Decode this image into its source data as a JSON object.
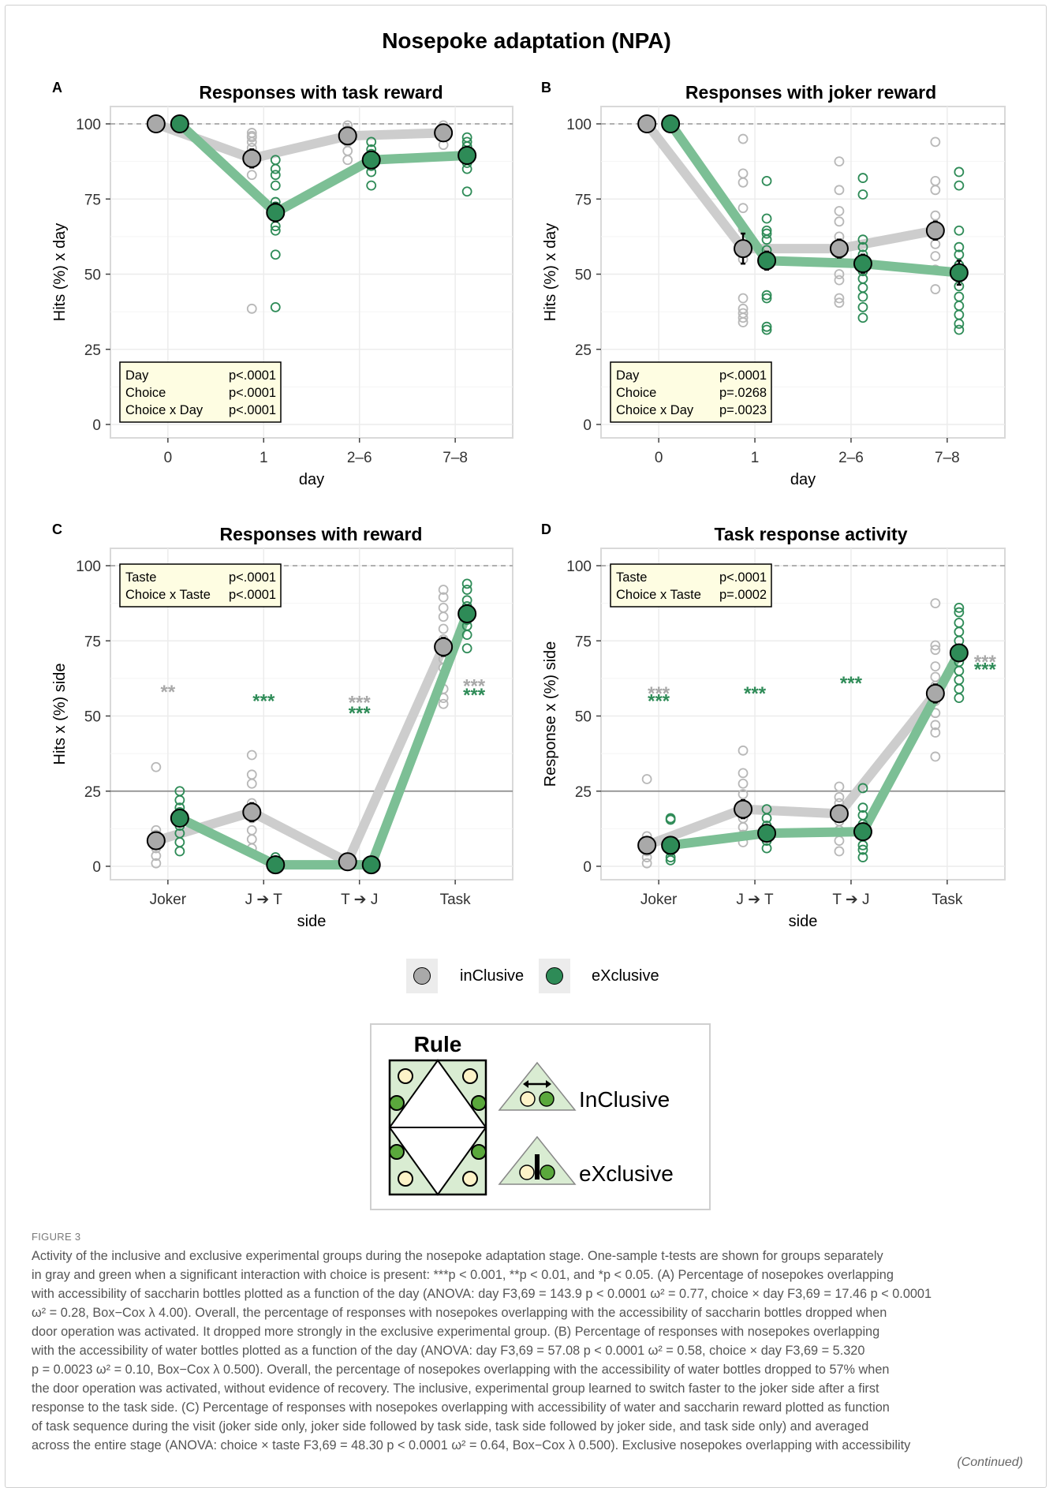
{
  "figure_title": "Nosepoke adaptation (NPA)",
  "legend": {
    "items": [
      {
        "label": "inClusive",
        "color": "#a9a9a9"
      },
      {
        "label": "eXclusive",
        "color": "#2e8b57"
      }
    ]
  },
  "rule_box": {
    "title": "Rule",
    "inclusive_label": "InClusive",
    "exclusive_label": "eXclusive"
  },
  "caption": {
    "label": "FIGURE 3",
    "lines": [
      "Activity of the inclusive and exclusive experimental groups during the nosepoke adaptation stage. One-sample t-tests are shown for groups separately",
      "in gray and green when a significant interaction with choice is present: ***p < 0.001, **p < 0.01, and *p < 0.05. (A) Percentage of nosepokes overlapping",
      "with accessibility of saccharin bottles plotted as a function of the day (ANOVA: day F3,69 = 143.9 p < 0.0001 ω² = 0.77, choice × day F3,69 = 17.46 p < 0.0001",
      "ω² = 0.28, Box−Cox λ 4.00). Overall, the percentage of responses with nosepokes overlapping with the accessibility of saccharin bottles dropped when",
      "door operation was activated. It dropped more strongly in the exclusive experimental group. (B) Percentage of responses with nosepokes overlapping",
      "with the accessibility of water bottles plotted as a function of the day (ANOVA: day F3,69 = 57.08 p < 0.0001 ω² = 0.58, choice × day F3,69 = 5.320",
      "p = 0.0023 ω² = 0.10, Box−Cox λ 0.500). Overall, the percentage of nosepokes overlapping with the accessibility of water bottles dropped to 57% when",
      "the door operation was activated, without evidence of recovery. The inclusive, experimental group learned to switch faster to the joker side after a first",
      "response to the task side. (C) Percentage of responses with nosepokes overlapping with accessibility of water and saccharin reward plotted as function",
      "of task sequence during the visit (joker side only, joker side followed by task side, task side followed by joker side, and task side only) and averaged",
      "across the entire stage (ANOVA: choice × taste F3,69 = 48.30 p < 0.0001 ω² = 0.64, Box−Cox λ 0.500). Exclusive nosepokes overlapping with accessibility"
    ],
    "continued": "(Continued)"
  },
  "chart_data": [
    {
      "id": "A",
      "type": "scatter",
      "panel_label": "A",
      "title": "Responses with task reward",
      "xlabel": "day",
      "ylabel": "Hits (%) x day",
      "categories": [
        "0",
        "1",
        "2–6",
        "7–8"
      ],
      "ylim": [
        0,
        100
      ],
      "yticks": [
        0,
        25,
        50,
        75,
        100
      ],
      "ref_line": {
        "y": 100,
        "style": "dashed"
      },
      "stats_box": {
        "position": "bottom-left",
        "rows": [
          [
            "Day",
            "p<.0001"
          ],
          [
            "Choice",
            "p<.0001"
          ],
          [
            "Choice x Day",
            "p<.0001"
          ]
        ]
      },
      "series": [
        {
          "name": "inClusive",
          "color": "#bdbdbd",
          "means": [
            100,
            88.5,
            96,
            97
          ],
          "errors": [
            0,
            3,
            1,
            1
          ],
          "points": [
            [
              100
            ],
            [
              38.5,
              83,
              87,
              90,
              92,
              94,
              95.5,
              96,
              97
            ],
            [
              88,
              91,
              94,
              96,
              98,
              99.5
            ],
            [
              93,
              96,
              98,
              99.5
            ]
          ]
        },
        {
          "name": "eXclusive",
          "color": "#2e8b57",
          "means": [
            100,
            70.5,
            88,
            89.5
          ],
          "errors": [
            0,
            3,
            2,
            2
          ],
          "points": [
            [
              100
            ],
            [
              39,
              56.5,
              64.5,
              66,
              69,
              72.5,
              74,
              79.5,
              83,
              85,
              88
            ],
            [
              79.5,
              84,
              86,
              88,
              90,
              91.5,
              94
            ],
            [
              77.5,
              85,
              87,
              89,
              91,
              92.5,
              94,
              95.5
            ]
          ]
        }
      ],
      "annotations": []
    },
    {
      "id": "B",
      "type": "scatter",
      "panel_label": "B",
      "title": "Responses with joker reward",
      "xlabel": "day",
      "ylabel": "Hits (%) x day",
      "categories": [
        "0",
        "1",
        "2–6",
        "7–8"
      ],
      "ylim": [
        0,
        100
      ],
      "yticks": [
        0,
        25,
        50,
        75,
        100
      ],
      "ref_line": {
        "y": 100,
        "style": "dashed"
      },
      "stats_box": {
        "position": "bottom-left",
        "rows": [
          [
            "Day",
            "p<.0001"
          ],
          [
            "Choice",
            "p=.0268"
          ],
          [
            "Choice x Day",
            "p=.0023"
          ]
        ]
      },
      "series": [
        {
          "name": "inClusive",
          "color": "#bdbdbd",
          "means": [
            100,
            58.5,
            58.5,
            64.5
          ],
          "errors": [
            0,
            5,
            3,
            3
          ],
          "points": [
            [
              100
            ],
            [
              34,
              35.5,
              37,
              38.5,
              42,
              55,
              65,
              72,
              80.5,
              83.5,
              95
            ],
            [
              40.5,
              42,
              48,
              50,
              54.5,
              57,
              62.5,
              67.5,
              71,
              78,
              87.5
            ],
            [
              45,
              51.5,
              56,
              60,
              66,
              69.5,
              78,
              81,
              94
            ]
          ]
        },
        {
          "name": "eXclusive",
          "color": "#2e8b57",
          "means": [
            100,
            54.5,
            53.5,
            50.5
          ],
          "errors": [
            0,
            3,
            3,
            4
          ],
          "points": [
            [
              100
            ],
            [
              31.5,
              32.5,
              42,
              43,
              56,
              58,
              61.5,
              63.5,
              64.5,
              68.5,
              81
            ],
            [
              35.5,
              39,
              42.5,
              45.5,
              48.5,
              51,
              53.5,
              56.5,
              59,
              61.5,
              76.5,
              82
            ],
            [
              31.5,
              33.5,
              36.5,
              39.5,
              42.5,
              46,
              50,
              53,
              56.5,
              59,
              64.5,
              79.5,
              84
            ]
          ]
        }
      ],
      "annotations": []
    },
    {
      "id": "C",
      "type": "scatter",
      "panel_label": "C",
      "title": "Responses with reward",
      "xlabel": "side",
      "ylabel": "Hits x (%) side",
      "categories": [
        "Joker",
        "J ➔ T",
        "T ➔ J",
        "Task"
      ],
      "ylim": [
        0,
        100
      ],
      "yticks": [
        0,
        25,
        50,
        75,
        100
      ],
      "ref_line": {
        "y": 100,
        "style": "dashed"
      },
      "solid_line": {
        "y": 25
      },
      "stats_box": {
        "position": "top-left",
        "rows": [
          [
            "Taste",
            "p<.0001"
          ],
          [
            "Choice x Taste",
            "p<.0001"
          ]
        ]
      },
      "series": [
        {
          "name": "inClusive",
          "color": "#bdbdbd",
          "means": [
            8.5,
            18,
            1.5,
            73
          ],
          "errors": [
            1.5,
            3,
            0.5,
            3
          ],
          "points": [
            [
              1,
              3.5,
              6,
              8.5,
              10.5,
              12,
              33
            ],
            [
              6,
              9,
              12,
              16,
              21,
              27.5,
              30.5,
              37
            ],
            [
              0.5,
              1,
              1.5,
              2
            ],
            [
              54,
              56,
              59,
              66,
              69,
              72,
              75.5,
              79,
              83,
              86,
              89.5,
              92
            ]
          ]
        },
        {
          "name": "eXclusive",
          "color": "#2e8b57",
          "means": [
            16,
            0.5,
            0.5,
            84
          ],
          "errors": [
            2,
            0.5,
            0.3,
            2.5
          ],
          "points": [
            [
              5,
              8,
              11,
              13.5,
              16,
              18,
              19.5,
              22,
              25
            ],
            [
              0,
              0.5,
              1,
              2,
              3
            ],
            [
              0,
              0.3,
              0.6,
              1
            ],
            [
              72.5,
              77,
              80,
              82,
              84,
              86.5,
              88.5,
              92,
              94
            ]
          ]
        }
      ],
      "annotations": [
        {
          "category": "Joker",
          "group": "inClusive",
          "text": "**",
          "y": 59
        },
        {
          "category": "J ➔ T",
          "group": "eXclusive",
          "text": "***",
          "y": 56
        },
        {
          "category": "T ➔ J",
          "group": "inClusive",
          "text": "***",
          "y": 55.5
        },
        {
          "category": "T ➔ J",
          "group": "eXclusive",
          "text": "***",
          "y": 52
        },
        {
          "category": "Task",
          "group": "inClusive",
          "text": "***",
          "y": 61
        },
        {
          "category": "Task",
          "group": "eXclusive",
          "text": "***",
          "y": 58
        }
      ]
    },
    {
      "id": "D",
      "type": "scatter",
      "panel_label": "D",
      "title": "Task response activity",
      "xlabel": "side",
      "ylabel": "Response x (%) side",
      "categories": [
        "Joker",
        "J ➔ T",
        "T ➔ J",
        "Task"
      ],
      "ylim": [
        0,
        100
      ],
      "yticks": [
        0,
        25,
        50,
        75,
        100
      ],
      "ref_line": {
        "y": 100,
        "style": "dashed"
      },
      "solid_line": {
        "y": 25
      },
      "stats_box": {
        "position": "top-left",
        "rows": [
          [
            "Taste",
            "p<.0001"
          ],
          [
            "Choice x Taste",
            "p=.0002"
          ]
        ]
      },
      "series": [
        {
          "name": "inClusive",
          "color": "#bdbdbd",
          "means": [
            7,
            19,
            17.5,
            57.5
          ],
          "errors": [
            1.5,
            3,
            2,
            3
          ],
          "points": [
            [
              1,
              3,
              5,
              7,
              8.5,
              10,
              29
            ],
            [
              8,
              10.5,
              13,
              16,
              20,
              24,
              27.5,
              31,
              38.5
            ],
            [
              5,
              8.5,
              12,
              15,
              18,
              21,
              23,
              26.5
            ],
            [
              36.5,
              44.5,
              47,
              51,
              55,
              60,
              63,
              66.5,
              72,
              73.5,
              87.5
            ]
          ]
        },
        {
          "name": "eXclusive",
          "color": "#2e8b57",
          "means": [
            7,
            11,
            11.5,
            71
          ],
          "errors": [
            1.5,
            2,
            1.5,
            2.5
          ],
          "points": [
            [
              2,
              3,
              5,
              15.5,
              16
            ],
            [
              6,
              8.5,
              11,
              13.5,
              16,
              19
            ],
            [
              3,
              5.5,
              7,
              10,
              14,
              17,
              19.5,
              26
            ],
            [
              56,
              59,
              62,
              65,
              68,
              72,
              75,
              78,
              81,
              84.5,
              86
            ]
          ]
        }
      ],
      "annotations": [
        {
          "category": "Joker",
          "group": "inClusive",
          "text": "***",
          "y": 58.5
        },
        {
          "category": "Joker",
          "group": "eXclusive",
          "text": "***",
          "y": 56
        },
        {
          "category": "J ➔ T",
          "group": "eXclusive",
          "text": "***",
          "y": 58.5
        },
        {
          "category": "T ➔ J",
          "group": "eXclusive",
          "text": "***",
          "y": 62
        },
        {
          "category": "Task",
          "group": "inClusive",
          "text": "***",
          "y": 69
        },
        {
          "category": "Task",
          "group": "eXclusive",
          "text": "***",
          "y": 66.5
        }
      ]
    }
  ]
}
